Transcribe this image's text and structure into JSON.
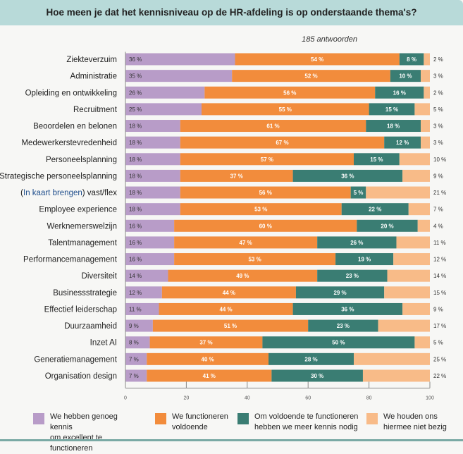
{
  "header": {
    "title": "Hoe meen je dat het kennisniveau op de HR-afdeling is op onderstaande thema's?"
  },
  "responses": "185 antwoorden",
  "chart_data": {
    "type": "bar",
    "orientation": "horizontal-stacked-percent",
    "title": "Hoe meen je dat het kennisniveau op de HR-afdeling is op onderstaande thema's?",
    "xlim": [
      0,
      100
    ],
    "xticks": [
      "0",
      "20",
      "40",
      "60",
      "80",
      "100"
    ],
    "categories": [
      "Ziekteverzuim",
      "Administratie",
      "Opleiding en ontwikkeling",
      "Recruitment",
      "Beoordelen en belonen",
      "Medewerkerstevredenheid",
      "Personeelsplanning",
      "Strategische personeelsplanning",
      "(In kaart brengen) vast/flex",
      "Employee experience",
      "Werknemerswelzijn",
      "Talentmanagement",
      "Performancemanagement",
      "Diversiteit",
      "Businessstrategie",
      "Effectief leiderschap",
      "Duurzaamheid",
      "Inzet AI",
      "Generatiemanagement",
      "Organisation design"
    ],
    "series": [
      {
        "name": "We hebben genoeg kennis om excellent te functioneren",
        "color": "#b89cc8",
        "values": [
          36,
          35,
          26,
          25,
          18,
          18,
          18,
          18,
          18,
          18,
          16,
          16,
          16,
          14,
          12,
          11,
          9,
          8,
          7,
          7
        ]
      },
      {
        "name": "We functioneren voldoende",
        "color": "#f28c3c",
        "values": [
          54,
          52,
          56,
          55,
          61,
          67,
          57,
          37,
          56,
          53,
          60,
          47,
          53,
          49,
          44,
          44,
          51,
          37,
          40,
          41
        ]
      },
      {
        "name": "Om voldoende te functioneren hebben we meer kennis nodig",
        "color": "#3a7d73",
        "values": [
          8,
          10,
          16,
          15,
          18,
          12,
          15,
          36,
          5,
          22,
          20,
          26,
          19,
          23,
          29,
          36,
          23,
          50,
          28,
          30
        ]
      },
      {
        "name": "We houden ons hiermee niet bezig",
        "color": "#f8bb88",
        "values": [
          2,
          3,
          2,
          5,
          3,
          3,
          10,
          9,
          21,
          7,
          4,
          11,
          12,
          14,
          15,
          9,
          17,
          5,
          25,
          22
        ]
      }
    ],
    "legend": "bottom"
  },
  "legend": [
    {
      "line1": "We hebben genoeg kennis",
      "line2": "om excellent te functioneren"
    },
    {
      "line1": "We functioneren",
      "line2": "voldoende"
    },
    {
      "line1": "Om voldoende te functioneren",
      "line2": "hebben we meer kennis nodig"
    },
    {
      "line1": "We houden ons",
      "line2": "hiermee niet bezig"
    }
  ]
}
